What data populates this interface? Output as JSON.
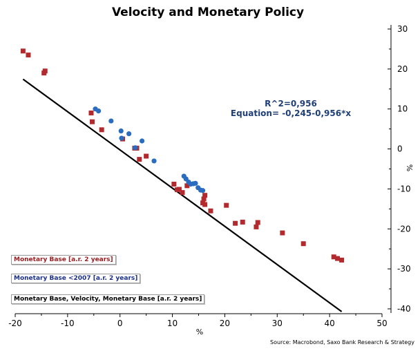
{
  "chart_data": {
    "type": "scatter",
    "title": "Velocity and Monetary Policy",
    "xlabel": "%",
    "ylabel": "%",
    "xlim": [
      -20,
      50
    ],
    "ylim": [
      -40,
      30
    ],
    "x_ticks": [
      "-20",
      "-10",
      "0",
      "10",
      "20",
      "30",
      "40",
      "50"
    ],
    "y_ticks": [
      "30",
      "20",
      "10",
      "0",
      "-10",
      "-20",
      "-30",
      "-40"
    ],
    "grid": false,
    "legend": "bottom-left",
    "annotations": [
      "R^2=0,956",
      "Equation= -0,245-0,956*x"
    ],
    "source": "Source: Macrobond, Saxo Bank Research & Strategy",
    "series": [
      {
        "name": "Monetary Base [a.r. 2 years]",
        "color": "#b22a2e",
        "marker": "square",
        "points": [
          [
            -18.5,
            24.5
          ],
          [
            -17.5,
            23.5
          ],
          [
            -14.5,
            19
          ],
          [
            -14.3,
            19.5
          ],
          [
            -5.5,
            9
          ],
          [
            -5.3,
            6.8
          ],
          [
            -3.5,
            4.8
          ],
          [
            0.5,
            2.5
          ],
          [
            2.8,
            0.2
          ],
          [
            3.2,
            0.2
          ],
          [
            3.7,
            -2.6
          ],
          [
            5,
            -1.8
          ],
          [
            10.3,
            -8.8
          ],
          [
            10.9,
            -10.2
          ],
          [
            11.3,
            -10.1
          ],
          [
            11.9,
            -10.9
          ],
          [
            12.8,
            -9.2
          ],
          [
            15.8,
            -13.5
          ],
          [
            16,
            -12.5
          ],
          [
            16.2,
            -11.6
          ],
          [
            16.2,
            -13.9
          ],
          [
            17.3,
            -15.5
          ],
          [
            20.3,
            -14.1
          ],
          [
            22,
            -18.6
          ],
          [
            23.4,
            -18.3
          ],
          [
            26,
            -19.5
          ],
          [
            26.3,
            -18.4
          ],
          [
            31,
            -21
          ],
          [
            35,
            -23.7
          ],
          [
            40.8,
            -27
          ],
          [
            41.5,
            -27.4
          ],
          [
            42.3,
            -27.8
          ]
        ]
      },
      {
        "name": "Monetary Base <2007 [a.r. 2 years]",
        "color": "#2a6cc0",
        "marker": "circle",
        "points": [
          [
            -4.7,
            10
          ],
          [
            -4.1,
            9.5
          ],
          [
            -1.7,
            7
          ],
          [
            0.2,
            4.5
          ],
          [
            0.3,
            2.7
          ],
          [
            1.7,
            3.8
          ],
          [
            2.9,
            0.3
          ],
          [
            4.2,
            2
          ],
          [
            6.5,
            -3
          ],
          [
            12.2,
            -6.8
          ],
          [
            12.6,
            -7.5
          ],
          [
            13.1,
            -8.3
          ],
          [
            13.5,
            -8.8
          ],
          [
            14,
            -8.7
          ],
          [
            14.4,
            -8.6
          ],
          [
            14.9,
            -9.7
          ],
          [
            15.4,
            -10.3
          ],
          [
            15.8,
            -10.4
          ]
        ]
      }
    ],
    "trendline": {
      "name": "Monetary Base, Velocity, Monetary Base [a.r. 2 years]",
      "color": "#000000",
      "intercept": -0.245,
      "slope": -0.956,
      "x_range": [
        -18.5,
        42.3
      ]
    }
  }
}
